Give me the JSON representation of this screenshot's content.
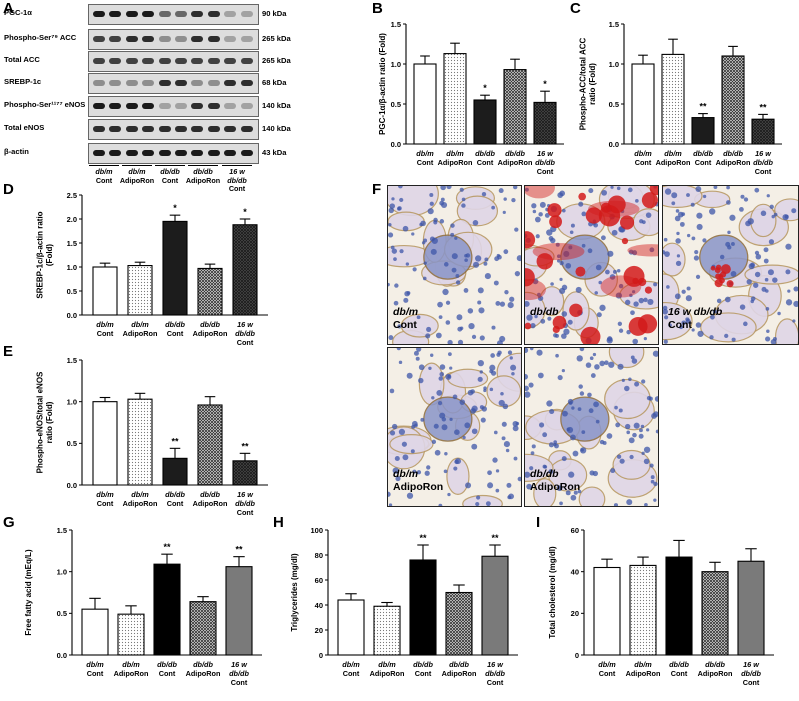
{
  "panels": {
    "a": "A",
    "b": "B",
    "c": "C",
    "d": "D",
    "e": "E",
    "f": "F",
    "g": "G",
    "h": "H",
    "i": "I"
  },
  "western_blot": {
    "rows": [
      {
        "label": "PGC-1α",
        "kda": "90 kDa"
      },
      {
        "label": "Phospho-Ser⁷⁹ ACC",
        "kda": "265 kDa"
      },
      {
        "label": "Total ACC",
        "kda": "265 kDa"
      },
      {
        "label": "SREBP-1c",
        "kda": "68 kDa"
      },
      {
        "label": "Phospho-Ser¹¹⁷⁷ eNOS",
        "kda": "140 kDa"
      },
      {
        "label": "Total eNOS",
        "kda": "140 kDa"
      },
      {
        "label": "β-actin",
        "kda": "43 kDa"
      }
    ],
    "groups": [
      {
        "line1": "db/m",
        "line2": "Cont",
        "line3": ""
      },
      {
        "line1": "db/m",
        "line2": "AdipoRon",
        "line3": ""
      },
      {
        "line1": "db/db",
        "line2": "Cont",
        "line3": ""
      },
      {
        "line1": "db/db",
        "line2": "AdipoRon",
        "line3": ""
      },
      {
        "line1": "16 w",
        "line2": "db/db",
        "line3": "Cont"
      }
    ]
  },
  "group_labels": [
    {
      "line1": "db/m",
      "line2": "Cont",
      "line3": ""
    },
    {
      "line1": "db/m",
      "line2": "AdipoRon",
      "line3": ""
    },
    {
      "line1": "db/db",
      "line2": "Cont",
      "line3": ""
    },
    {
      "line1": "db/db",
      "line2": "AdipoRon",
      "line3": ""
    },
    {
      "line1": "16 w",
      "line2": "db/db",
      "line3": "Cont"
    }
  ],
  "micrographs": [
    {
      "line1": "db/m",
      "line2": "Cont"
    },
    {
      "line1": "db/db",
      "line2": ""
    },
    {
      "line1": "16 w db/db",
      "line2": "Cont"
    },
    {
      "line1": "db/m",
      "line2": "AdipoRon"
    },
    {
      "line1": "db/db",
      "line2": "AdipoRon"
    }
  ],
  "colors": {
    "cont_dbm": "#ffffff",
    "adiporon_dbm": "#e6e6e6",
    "cont_dbdb": "#1a1a1a",
    "adiporon_dbdb": "#555555",
    "cont_16w": "#3a3a3a",
    "lipid_stain": "#d21a1a",
    "nuclei_stain": "#3d55a8"
  },
  "chart_data": [
    {
      "id": "B",
      "type": "bar",
      "ylabel": "PGC-1α/β-actin ratio (Fold)",
      "ylim": [
        0,
        1.5
      ],
      "yticks": [
        "0.0",
        "0.5",
        "1.0",
        "1.5"
      ],
      "values": [
        1.0,
        1.13,
        0.55,
        0.93,
        0.52
      ],
      "errors": [
        0.1,
        0.13,
        0.06,
        0.13,
        0.14
      ],
      "marks": [
        "",
        "",
        "*",
        "",
        "*"
      ]
    },
    {
      "id": "C",
      "type": "bar",
      "ylabel": "Phospho-ACC/total ACC ratio (Fold)",
      "ylim": [
        0,
        1.5
      ],
      "yticks": [
        "0.0",
        "0.5",
        "1.0",
        "1.5"
      ],
      "values": [
        1.0,
        1.12,
        0.33,
        1.1,
        0.31
      ],
      "errors": [
        0.11,
        0.19,
        0.05,
        0.12,
        0.06
      ],
      "marks": [
        "",
        "",
        "**",
        "",
        "**"
      ]
    },
    {
      "id": "D",
      "type": "bar",
      "ylabel": "SREBP-1c/β-actin ratio (Fold)",
      "ylim": [
        0,
        2.5
      ],
      "yticks": [
        "0.0",
        "0.5",
        "1.0",
        "1.5",
        "2.0",
        "2.5"
      ],
      "values": [
        1.0,
        1.03,
        1.95,
        0.97,
        1.88
      ],
      "errors": [
        0.08,
        0.07,
        0.13,
        0.09,
        0.12
      ],
      "marks": [
        "",
        "",
        "*",
        "",
        "*"
      ]
    },
    {
      "id": "E",
      "type": "bar",
      "ylabel": "Phospho-eNOS/total eNOS ratio (Fold)",
      "ylim": [
        0,
        1.5
      ],
      "yticks": [
        "0.0",
        "0.5",
        "1.0",
        "1.5"
      ],
      "values": [
        1.0,
        1.03,
        0.32,
        0.96,
        0.29
      ],
      "errors": [
        0.05,
        0.07,
        0.12,
        0.1,
        0.09
      ],
      "marks": [
        "",
        "",
        "**",
        "",
        "**"
      ]
    },
    {
      "id": "G",
      "type": "bar",
      "ylabel": "Free fatty acid (mEq/L)",
      "ylim": [
        0,
        1.5
      ],
      "yticks": [
        "0.0",
        "0.5",
        "1.0",
        "1.5"
      ],
      "values": [
        0.55,
        0.49,
        1.09,
        0.64,
        1.06
      ],
      "errors": [
        0.13,
        0.1,
        0.12,
        0.06,
        0.12
      ],
      "marks": [
        "",
        "",
        "**",
        "",
        "**"
      ]
    },
    {
      "id": "H",
      "type": "bar",
      "ylabel": "Triglycerides (mg/dl)",
      "ylim": [
        0,
        100
      ],
      "yticks": [
        "0",
        "20",
        "40",
        "60",
        "80",
        "100"
      ],
      "values": [
        44,
        39,
        76,
        50,
        79
      ],
      "errors": [
        5,
        3,
        12,
        6,
        9
      ],
      "marks": [
        "",
        "",
        "**",
        "",
        "**"
      ]
    },
    {
      "id": "I",
      "type": "bar",
      "ylabel": "Total cholesterol (mg/dl)",
      "ylim": [
        0,
        60
      ],
      "yticks": [
        "0",
        "20",
        "40",
        "60"
      ],
      "values": [
        42,
        43,
        47,
        40,
        45
      ],
      "errors": [
        4,
        4,
        8,
        4.5,
        6
      ],
      "marks": [
        "",
        "",
        "",
        "",
        ""
      ]
    }
  ]
}
